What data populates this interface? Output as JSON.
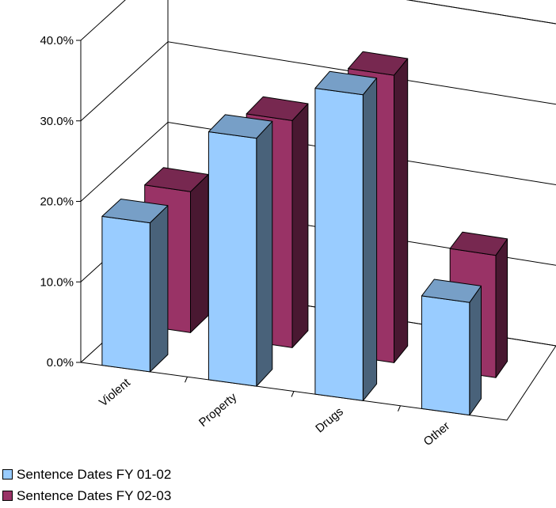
{
  "chart_data": {
    "type": "bar",
    "categories": [
      "Violent",
      "Property",
      "Drugs",
      "Other"
    ],
    "series": [
      {
        "name": "Sentence Dates FY 01-02",
        "values": [
          18.5,
          30.8,
          38.0,
          14.0
        ],
        "color": "#99ccff"
      },
      {
        "name": "Sentence Dates FY 02-03",
        "values": [
          17.5,
          28.2,
          35.7,
          15.2
        ],
        "color": "#993366"
      }
    ],
    "y_ticks": [
      "0.0%",
      "10.0%",
      "20.0%",
      "30.0%",
      "40.0%"
    ],
    "ylim": [
      0,
      40
    ],
    "y_format": "percent",
    "style": "3d-column",
    "grid": true,
    "legend_position": "bottom-left"
  }
}
